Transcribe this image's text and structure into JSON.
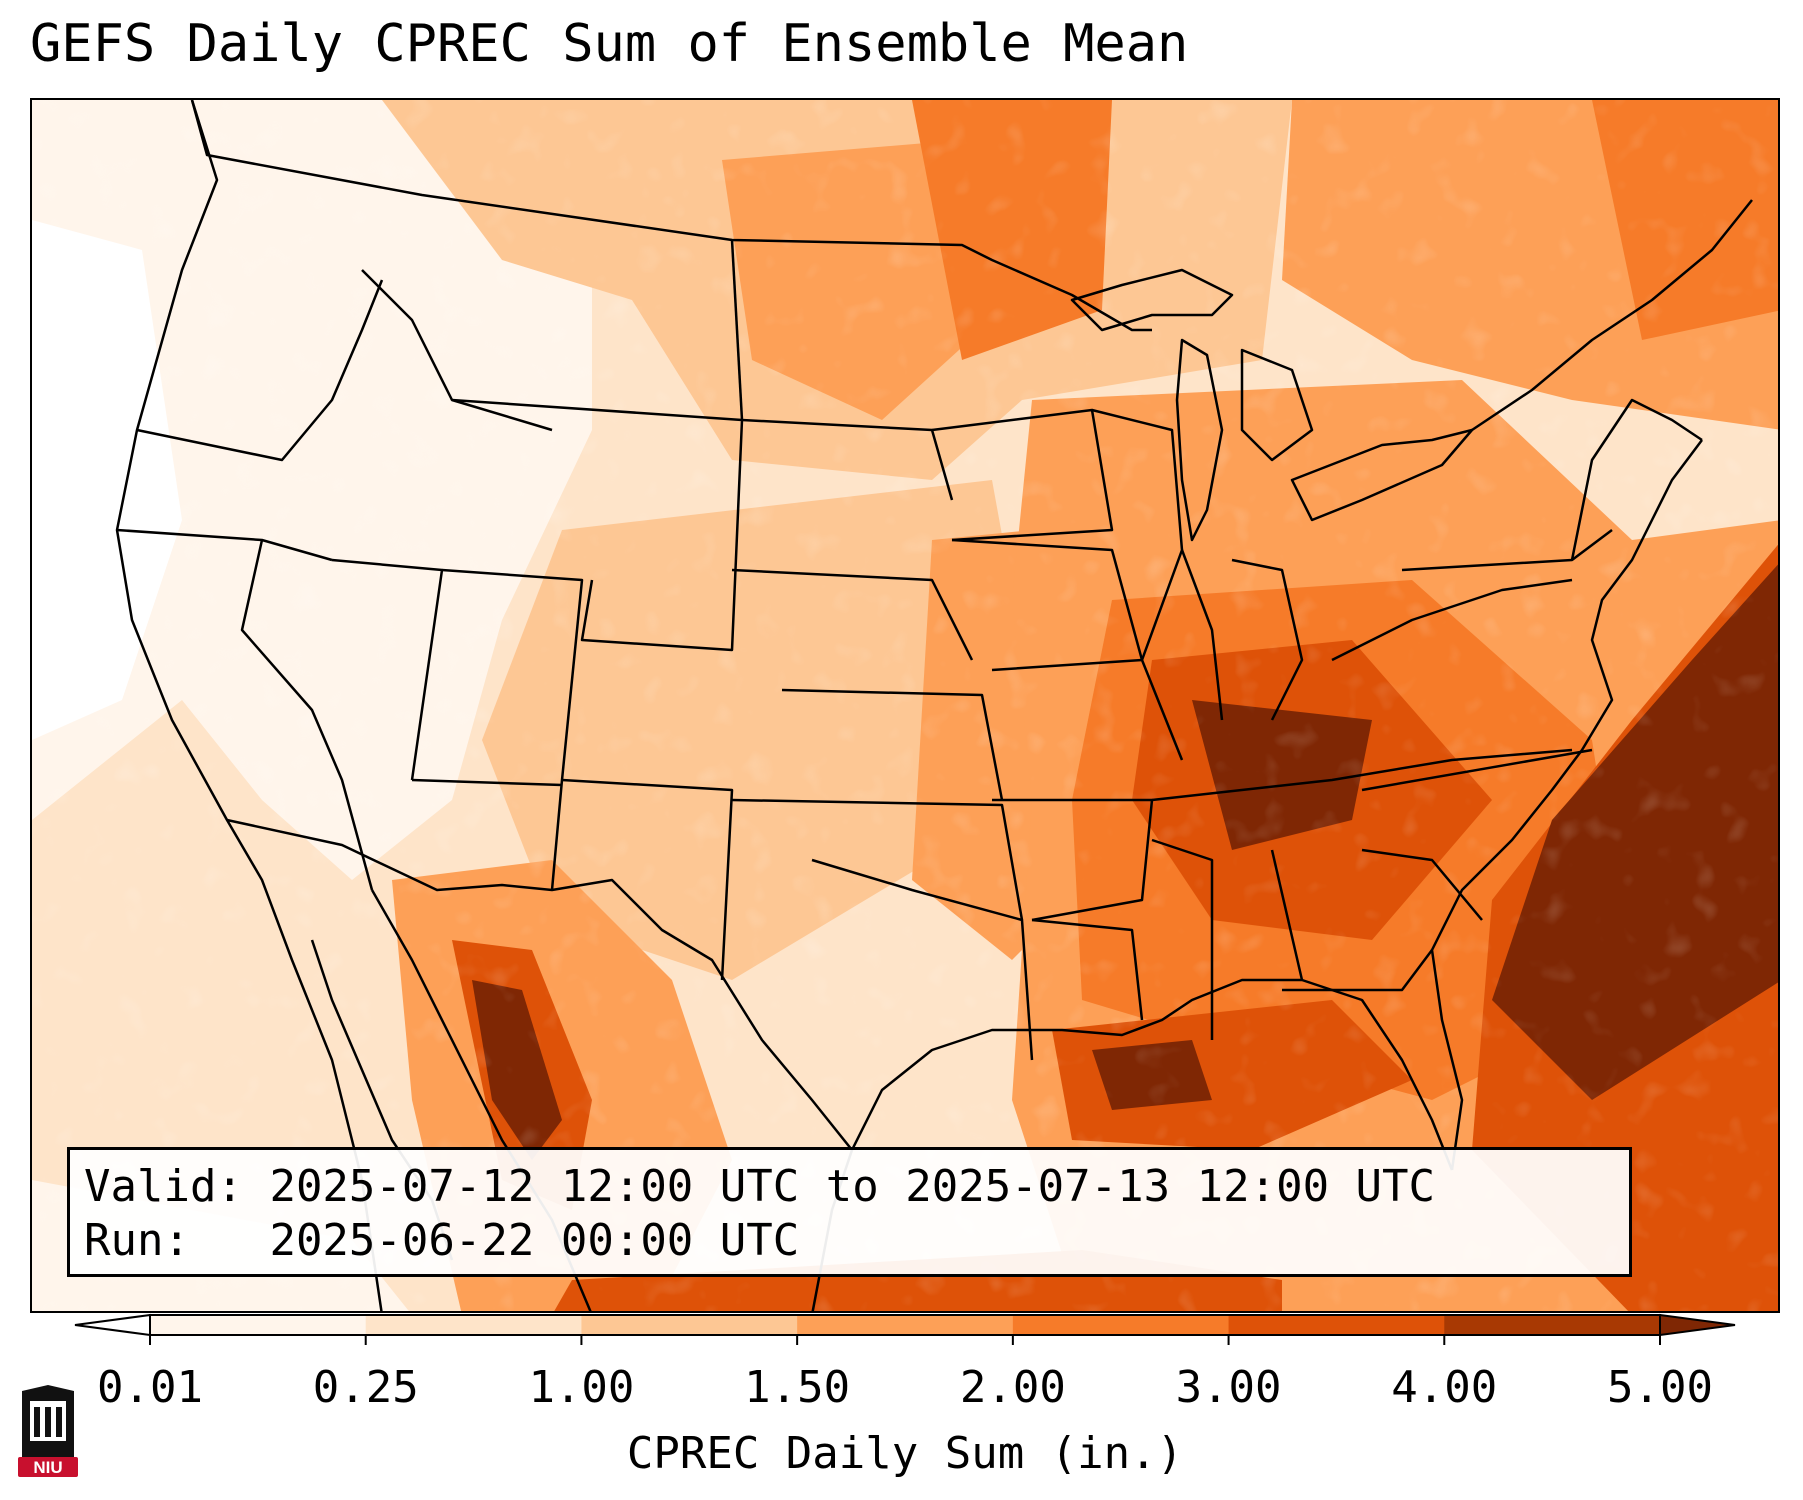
{
  "title": "GEFS Daily CPREC Sum of Ensemble Mean",
  "info": {
    "valid_label": "Valid:",
    "valid_value": "2025-07-12 12:00 UTC to 2025-07-13 12:00 UTC",
    "run_label": "Run:",
    "run_value": "2025-06-22 00:00 UTC"
  },
  "colorbar": {
    "label": "CPREC Daily Sum (in.)",
    "ticks": [
      "0.01",
      "0.25",
      "1.00",
      "1.50",
      "2.00",
      "3.00",
      "4.00",
      "5.00"
    ],
    "colors": [
      "#fff5eb",
      "#fee4c9",
      "#fdc794",
      "#fda057",
      "#f67b29",
      "#de5208",
      "#a83903"
    ],
    "under_color": "#ffffff",
    "over_color": "#7f2704"
  },
  "logo": {
    "text": "NIU",
    "colors": {
      "red": "#c8102e",
      "black": "#111111"
    }
  },
  "map": {
    "projection": "lambert-conformal",
    "region": "CONUS",
    "field": "CPREC daily sum"
  }
}
